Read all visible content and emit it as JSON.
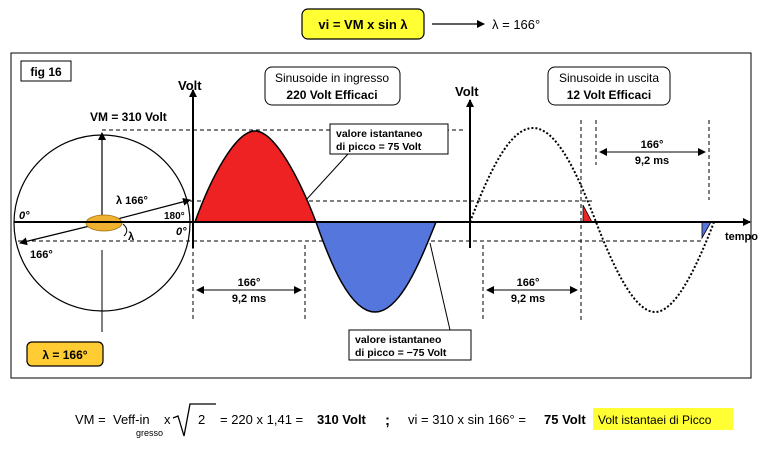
{
  "top_formula": {
    "box_text": "vi = VM x sin λ",
    "result": "λ = 166°"
  },
  "figure": {
    "fig_label": "fig 16",
    "vm_label": "VM = 310 Volt",
    "angle_166": "λ 166°",
    "angle_166_bottom": "166°",
    "lambda_small": "λ",
    "zero_left": "0°",
    "zero_axis": "0°",
    "deg_180": "180°",
    "lambda_badge": "λ = 166°",
    "volt_left": "Volt",
    "volt_right": "Volt",
    "tempo": "tempo",
    "input_box": {
      "line1": "Sinusoide in ingresso",
      "line2": "220 Volt Efficaci"
    },
    "output_box": {
      "line1": "Sinusoide in uscita",
      "line2": "12 Volt Efficaci"
    },
    "peak_pos": {
      "line1": "valore istantaneo",
      "line2": "di picco = 75 Volt"
    },
    "peak_neg": {
      "line1": "valore istantaneo",
      "line2": "di picco = −75 Volt"
    },
    "dim_1": {
      "deg": "166°",
      "ms": "9,2 ms"
    },
    "dim_2": {
      "deg": "166°",
      "ms": "9,2 ms"
    },
    "dim_3": {
      "deg": "166°",
      "ms": "9,2 ms"
    }
  },
  "bottom_formula": {
    "vm_part": "VM = ",
    "veff": "Veff-in",
    "gresso": "gresso",
    "x": "x",
    "sqrt_val": "2",
    "calc": "= 220 x 1,41 =",
    "result_vm": "310 Volt",
    "semicolon": ";",
    "vi_calc": "vi = 310 x sin 166° =",
    "result_vi": "75 Volt",
    "highlight": "Volt istantaei di Picco"
  },
  "colors": {
    "yellow": "#ffff33",
    "orange_badge": "#ffcc33",
    "red_fill": "#ee2222",
    "blue_fill": "#5577dd",
    "blue_text": "#3366cc"
  }
}
